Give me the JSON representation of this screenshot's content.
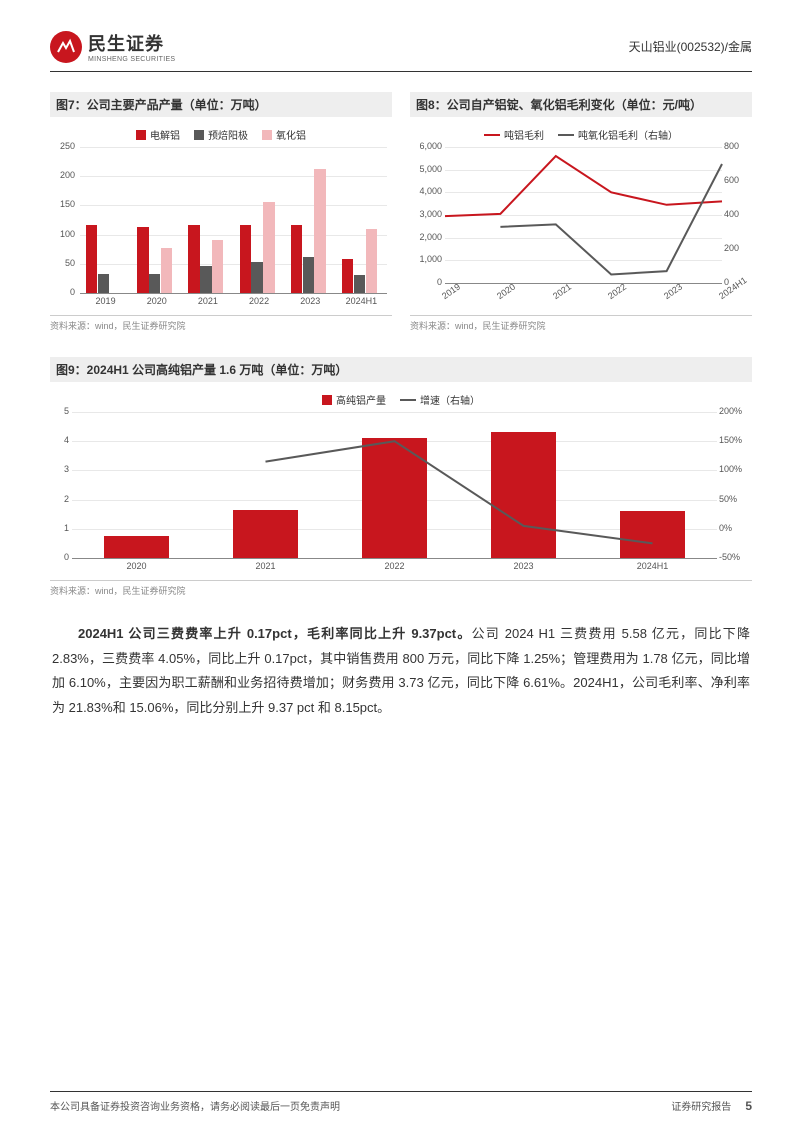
{
  "header": {
    "logo_cn": "民生证券",
    "logo_en": "MINSHENG SECURITIES",
    "right": "天山铝业(002532)/金属"
  },
  "chart7": {
    "title": "图7：公司主要产品产量（单位：万吨）",
    "type": "bar",
    "legend": [
      {
        "label": "电解铝",
        "color": "#c8161e"
      },
      {
        "label": "预焙阳极",
        "color": "#595959"
      },
      {
        "label": "氧化铝",
        "color": "#f2b8bb"
      }
    ],
    "categories": [
      "2019",
      "2020",
      "2021",
      "2022",
      "2023",
      "2024H1"
    ],
    "series": {
      "电解铝": [
        117,
        113,
        117,
        117,
        117,
        58
      ],
      "预焙阳极": [
        32,
        32,
        46,
        53,
        62,
        30
      ],
      "氧化铝": [
        0,
        77,
        91,
        155,
        213,
        110
      ]
    },
    "ylim": [
      0,
      250
    ],
    "ytick_step": 50,
    "background": "#ffffff",
    "source": "资料来源：wind，民生证券研究院"
  },
  "chart8": {
    "title": "图8：公司自产铝锭、氧化铝毛利变化（单位：元/吨）",
    "type": "line-dual",
    "legend": [
      {
        "label": "吨铝毛利",
        "color": "#c8161e"
      },
      {
        "label": "吨氧化铝毛利（右轴）",
        "color": "#595959"
      }
    ],
    "categories": [
      "2019",
      "2020",
      "2021",
      "2022",
      "2023",
      "2024H1"
    ],
    "series1": {
      "name": "吨铝毛利",
      "values": [
        2950,
        3050,
        5600,
        4000,
        3450,
        3600
      ],
      "color": "#c8161e"
    },
    "series2": {
      "name": "吨氧化铝毛利",
      "values": [
        null,
        330,
        345,
        50,
        70,
        700
      ],
      "color": "#595959"
    },
    "ylim_left": [
      0,
      6000
    ],
    "ytick_left": 1000,
    "ylim_right": [
      0,
      800
    ],
    "ytick_right": 200,
    "source": "资料来源：wind，民生证券研究院"
  },
  "chart9": {
    "title": "图9：2024H1 公司高纯铝产量 1.6 万吨（单位：万吨）",
    "type": "bar-line-dual",
    "legend": [
      {
        "label": "高纯铝产量",
        "color": "#c8161e",
        "kind": "bar"
      },
      {
        "label": "增速（右轴）",
        "color": "#595959",
        "kind": "line"
      }
    ],
    "categories": [
      "2020",
      "2021",
      "2022",
      "2023",
      "2024H1"
    ],
    "bar_values": [
      0.75,
      1.65,
      4.1,
      4.3,
      1.6
    ],
    "line_values": [
      null,
      115,
      150,
      5,
      -25
    ],
    "ylim_left": [
      0,
      5
    ],
    "ytick_left": 1,
    "ylim_right": [
      -50,
      200
    ],
    "ytick_right": 50,
    "source": "资料来源：wind，民生证券研究院"
  },
  "body": {
    "lead": "2024H1 公司三费费率上升 0.17pct，毛利率同比上升 9.37pct。",
    "rest": "公司 2024 H1 三费费用 5.58 亿元，同比下降 2.83%，三费费率 4.05%，同比上升 0.17pct，其中销售费用 800 万元，同比下降 1.25%；管理费用为 1.78 亿元，同比增加 6.10%，主要因为职工薪酬和业务招待费增加；财务费用 3.73 亿元，同比下降 6.61%。2024H1，公司毛利率、净利率为 21.83%和 15.06%，同比分别上升 9.37 pct 和 8.15pct。"
  },
  "footer": {
    "left": "本公司具备证券投资咨询业务资格，请务必阅读最后一页免责声明",
    "right": "证券研究报告",
    "page": "5"
  }
}
